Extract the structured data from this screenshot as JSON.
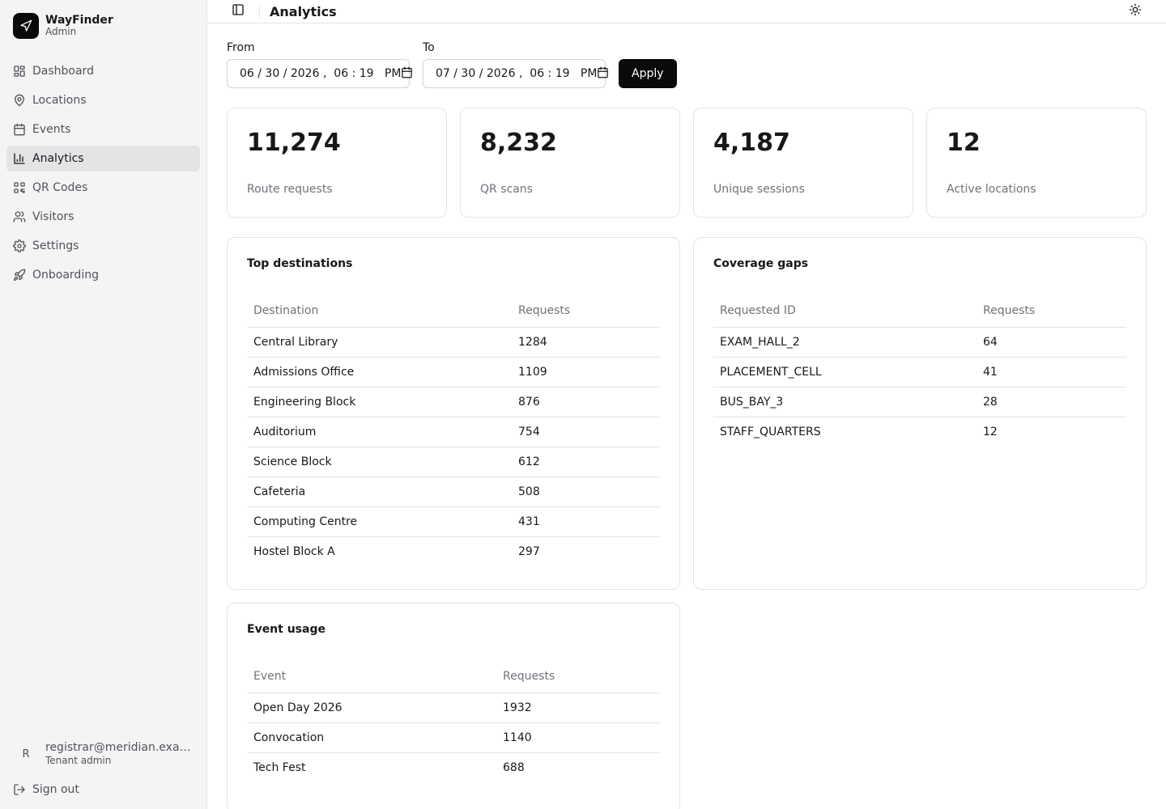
{
  "brand": {
    "name": "WayFinder",
    "subtitle": "Admin"
  },
  "nav": [
    {
      "label": "Dashboard",
      "icon": "dashboard-icon",
      "active": false
    },
    {
      "label": "Locations",
      "icon": "map-pin-icon",
      "active": false
    },
    {
      "label": "Events",
      "icon": "calendar-icon",
      "active": false
    },
    {
      "label": "Analytics",
      "icon": "bar-chart-icon",
      "active": true
    },
    {
      "label": "QR Codes",
      "icon": "qr-code-icon",
      "active": false
    },
    {
      "label": "Visitors",
      "icon": "users-icon",
      "active": false
    },
    {
      "label": "Settings",
      "icon": "gear-icon",
      "active": false
    },
    {
      "label": "Onboarding",
      "icon": "rocket-icon",
      "active": false
    }
  ],
  "user": {
    "initial": "R",
    "email": "registrar@meridian.example.edu",
    "role": "Tenant admin"
  },
  "signout_label": "Sign out",
  "header": {
    "title": "Analytics"
  },
  "filters": {
    "from_label": "From",
    "from_value": "06 / 30 / 2026 ,  06 : 19   PM",
    "to_label": "To",
    "to_value": "07 / 30 / 2026 ,  06 : 19   PM",
    "apply_label": "Apply"
  },
  "stats": [
    {
      "value": "11,274",
      "label": "Route requests"
    },
    {
      "value": "8,232",
      "label": "QR scans"
    },
    {
      "value": "4,187",
      "label": "Unique sessions"
    },
    {
      "value": "12",
      "label": "Active locations"
    }
  ],
  "top_destinations": {
    "title": "Top destinations",
    "columns": [
      "Destination",
      "Requests"
    ],
    "rows": [
      [
        "Central Library",
        "1284"
      ],
      [
        "Admissions Office",
        "1109"
      ],
      [
        "Engineering Block",
        "876"
      ],
      [
        "Auditorium",
        "754"
      ],
      [
        "Science Block",
        "612"
      ],
      [
        "Cafeteria",
        "508"
      ],
      [
        "Computing Centre",
        "431"
      ],
      [
        "Hostel Block A",
        "297"
      ]
    ]
  },
  "coverage_gaps": {
    "title": "Coverage gaps",
    "columns": [
      "Requested ID",
      "Requests"
    ],
    "rows": [
      [
        "EXAM_HALL_2",
        "64"
      ],
      [
        "PLACEMENT_CELL",
        "41"
      ],
      [
        "BUS_BAY_3",
        "28"
      ],
      [
        "STAFF_QUARTERS",
        "12"
      ]
    ]
  },
  "event_usage": {
    "title": "Event usage",
    "columns": [
      "Event",
      "Requests"
    ],
    "rows": [
      [
        "Open Day 2026",
        "1932"
      ],
      [
        "Convocation",
        "1140"
      ],
      [
        "Tech Fest",
        "688"
      ]
    ]
  },
  "colors": {
    "accent": "#0a0a0a",
    "sidebar_bg": "#f4f4f5",
    "active_nav_bg": "#e4e4e7",
    "border": "#e4e4e7",
    "muted_text": "#71717a"
  }
}
